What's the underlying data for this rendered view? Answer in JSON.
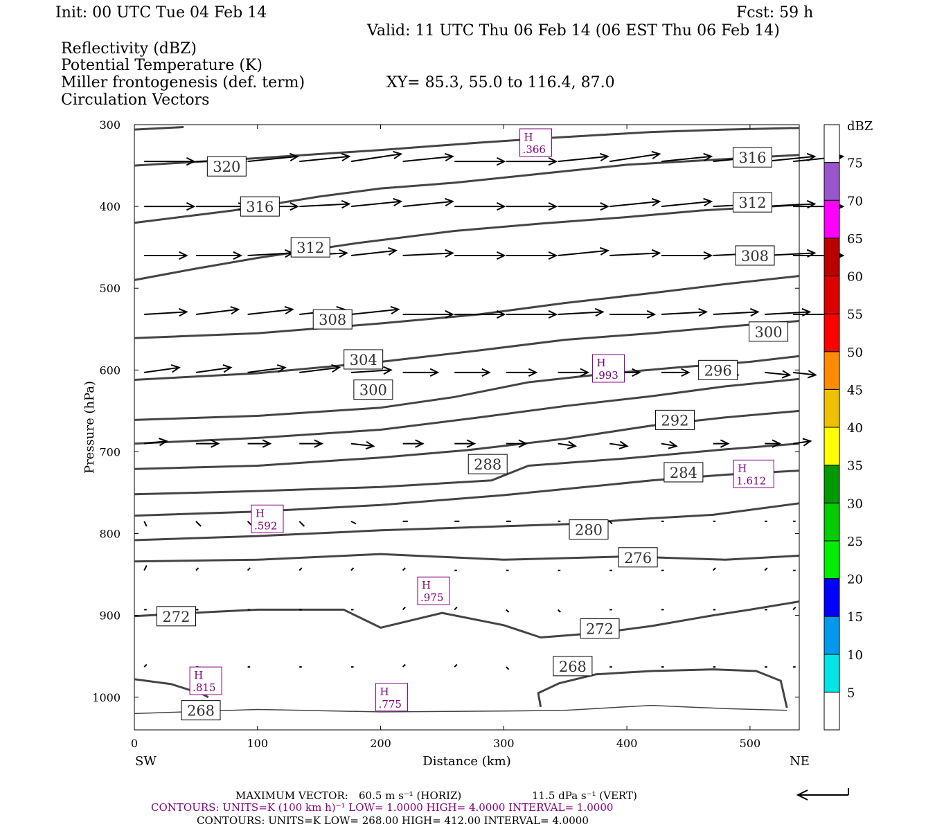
{
  "header": {
    "init": "Init: 00 UTC Tue 04 Feb 14",
    "fcst": "Fcst:   59 h",
    "valid": "Valid: 11 UTC Thu 06 Feb 14 (06 EST Thu 06 Feb 14)"
  },
  "fields": [
    {
      "text": "Reflectivity (dBZ)",
      "color": "#000000"
    },
    {
      "text": "Potential Temperature (K)",
      "color": "#666666"
    },
    {
      "text": "Miller frontogenesis (def. term)",
      "color": "#800080"
    },
    {
      "text": "Circulation Vectors",
      "color": "#000000"
    }
  ],
  "xy_label": "XY=  85.3, 55.0 to 116.4, 87.0",
  "axes": {
    "ylabel": "Pressure (hPa)",
    "xlabel": "Distance (km)",
    "x_left_label": "SW",
    "x_right_label": "NE",
    "yticks": [
      "300",
      "400",
      "500",
      "600",
      "700",
      "800",
      "900",
      "1000"
    ],
    "xticks": [
      "0",
      "100",
      "200",
      "300",
      "400",
      "500"
    ]
  },
  "colorbar": {
    "unit": "dBZ",
    "levels": [
      "5",
      "10",
      "15",
      "20",
      "25",
      "30",
      "35",
      "40",
      "45",
      "50",
      "55",
      "60",
      "65",
      "70",
      "75"
    ],
    "colors": [
      "#ffffff",
      "#00e5e5",
      "#0099ee",
      "#0000ff",
      "#00ee00",
      "#00cc00",
      "#009900",
      "#ffff00",
      "#eec000",
      "#ff8c00",
      "#ff0000",
      "#dd0000",
      "#bb0000",
      "#ff00ff",
      "#9955cc",
      "#ffffff"
    ]
  },
  "footer": {
    "max_vector_label": "MAXIMUM VECTOR:",
    "horiz": "60.5 m s⁻¹ (HORIZ)",
    "vert": "11.5 dPa s⁻¹ (VERT)",
    "contours_purple": "CONTOURS:  UNITS=K (100 km h)⁻¹  LOW=   1.0000      HIGH=   4.0000      INTERVAL=    1.0000",
    "contours_black": "CONTOURS:  UNITS=K  LOW=   268.00        HIGH=   412.00        INTERVAL=     4.0000"
  },
  "chart_data": {
    "type": "cross-section",
    "xlim": [
      0,
      540
    ],
    "ylim_hPa": [
      300,
      1040
    ],
    "theta_contours": [
      {
        "label": "268",
        "points": [
          [
            0,
            1020
          ],
          [
            100,
            1015
          ],
          [
            200,
            1018
          ],
          [
            300,
            1017
          ],
          [
            350,
            1016
          ],
          [
            420,
            1010
          ],
          [
            480,
            1014
          ],
          [
            530,
            1016
          ]
        ]
      },
      {
        "label": "268",
        "points": [
          [
            0,
            978
          ],
          [
            30,
            984
          ],
          [
            55,
            996
          ],
          [
            60,
            1000
          ]
        ]
      },
      {
        "label": "268",
        "points": [
          [
            330,
            1012
          ],
          [
            328,
            995
          ],
          [
            345,
            983
          ],
          [
            375,
            972
          ],
          [
            420,
            968
          ],
          [
            470,
            966
          ],
          [
            505,
            968
          ],
          [
            525,
            980
          ],
          [
            530,
            1013
          ]
        ]
      },
      {
        "label": "272",
        "points": [
          [
            0,
            901
          ],
          [
            60,
            896
          ],
          [
            100,
            893
          ],
          [
            170,
            893
          ],
          [
            200,
            915
          ],
          [
            250,
            897
          ],
          [
            300,
            912
          ],
          [
            330,
            927
          ],
          [
            380,
            921
          ],
          [
            420,
            913
          ],
          [
            470,
            900
          ],
          [
            500,
            893
          ],
          [
            540,
            883
          ]
        ]
      },
      {
        "label": "276",
        "points": [
          [
            0,
            834
          ],
          [
            100,
            832
          ],
          [
            200,
            825
          ],
          [
            300,
            832
          ],
          [
            400,
            828
          ],
          [
            480,
            832
          ],
          [
            540,
            827
          ]
        ]
      },
      {
        "label": "280",
        "points": [
          [
            0,
            808
          ],
          [
            100,
            803
          ],
          [
            200,
            796
          ],
          [
            300,
            791
          ],
          [
            360,
            788
          ],
          [
            400,
            783
          ],
          [
            470,
            777
          ],
          [
            540,
            763
          ]
        ]
      },
      {
        "label": "280",
        "points": [
          [
            0,
            778
          ],
          [
            100,
            773
          ],
          [
            200,
            765
          ],
          [
            300,
            753
          ],
          [
            360,
            744
          ],
          [
            420,
            735
          ],
          [
            480,
            728
          ],
          [
            540,
            723
          ]
        ]
      },
      {
        "label": "284",
        "points": [
          [
            0,
            752
          ],
          [
            100,
            748
          ],
          [
            200,
            743
          ],
          [
            290,
            735
          ],
          [
            320,
            717
          ],
          [
            400,
            708
          ],
          [
            480,
            697
          ],
          [
            540,
            690
          ]
        ]
      },
      {
        "label": "288",
        "points": [
          [
            0,
            721
          ],
          [
            100,
            717
          ],
          [
            200,
            707
          ],
          [
            270,
            698
          ],
          [
            350,
            684
          ],
          [
            420,
            668
          ],
          [
            480,
            658
          ],
          [
            540,
            650
          ]
        ]
      },
      {
        "label": "292",
        "points": [
          [
            0,
            690
          ],
          [
            100,
            683
          ],
          [
            200,
            673
          ],
          [
            280,
            658
          ],
          [
            350,
            644
          ],
          [
            420,
            632
          ],
          [
            480,
            620
          ],
          [
            540,
            611
          ]
        ]
      },
      {
        "label": "296",
        "points": [
          [
            0,
            661
          ],
          [
            100,
            656
          ],
          [
            200,
            646
          ],
          [
            260,
            633
          ],
          [
            320,
            615
          ],
          [
            380,
            605
          ],
          [
            440,
            597
          ],
          [
            500,
            590
          ],
          [
            540,
            583
          ]
        ]
      },
      {
        "label": "300",
        "points": [
          [
            0,
            612
          ],
          [
            100,
            604
          ],
          [
            200,
            590
          ],
          [
            280,
            576
          ],
          [
            350,
            563
          ],
          [
            420,
            555
          ],
          [
            480,
            547
          ],
          [
            540,
            540
          ]
        ]
      },
      {
        "label": "304",
        "points": [
          [
            0,
            561
          ],
          [
            100,
            555
          ],
          [
            200,
            543
          ],
          [
            280,
            532
          ],
          [
            350,
            518
          ],
          [
            420,
            506
          ],
          [
            480,
            495
          ],
          [
            540,
            485
          ]
        ]
      },
      {
        "label": "308",
        "points": [
          [
            0,
            490
          ],
          [
            50,
            476
          ],
          [
            100,
            463
          ],
          [
            180,
            445
          ],
          [
            260,
            430
          ],
          [
            330,
            421
          ],
          [
            400,
            413
          ],
          [
            460,
            405
          ],
          [
            540,
            398
          ]
        ]
      },
      {
        "label": "312",
        "points": [
          [
            0,
            420
          ],
          [
            80,
            405
          ],
          [
            150,
            388
          ],
          [
            200,
            378
          ],
          [
            260,
            371
          ],
          [
            330,
            360
          ],
          [
            400,
            349
          ],
          [
            470,
            343
          ],
          [
            540,
            337
          ]
        ]
      },
      {
        "label": "316",
        "points": [
          [
            0,
            350
          ],
          [
            100,
            341
          ],
          [
            200,
            331
          ],
          [
            280,
            322
          ],
          [
            340,
            316
          ],
          [
            420,
            309
          ],
          [
            480,
            306
          ],
          [
            540,
            304
          ]
        ]
      },
      {
        "label": "320",
        "points": [
          [
            0,
            306
          ],
          [
            40,
            303
          ]
        ]
      }
    ],
    "theta_labels": [
      {
        "text": "320",
        "x": 75,
        "p": 351
      },
      {
        "text": "316",
        "x": 502,
        "p": 340
      },
      {
        "text": "316",
        "x": 102,
        "p": 400
      },
      {
        "text": "312",
        "x": 502,
        "p": 395
      },
      {
        "text": "312",
        "x": 143,
        "p": 450
      },
      {
        "text": "308",
        "x": 504,
        "p": 460
      },
      {
        "text": "308",
        "x": 161,
        "p": 538
      },
      {
        "text": "300",
        "x": 515,
        "p": 553
      },
      {
        "text": "304",
        "x": 186,
        "p": 587
      },
      {
        "text": "296",
        "x": 474,
        "p": 600
      },
      {
        "text": "300",
        "x": 194,
        "p": 624
      },
      {
        "text": "292",
        "x": 439,
        "p": 661
      },
      {
        "text": "288",
        "x": 287,
        "p": 715
      },
      {
        "text": "284",
        "x": 446,
        "p": 725
      },
      {
        "text": "280",
        "x": 369,
        "p": 795
      },
      {
        "text": "276",
        "x": 409,
        "p": 829
      },
      {
        "text": "272",
        "x": 34,
        "p": 901
      },
      {
        "text": "272",
        "x": 378,
        "p": 916
      },
      {
        "text": "268",
        "x": 356,
        "p": 962
      },
      {
        "text": "268",
        "x": 54,
        "p": 1016
      }
    ],
    "frontogenesis_maxima": [
      {
        "label": "H",
        "value": ".366",
        "x": 326,
        "p": 322
      },
      {
        "label": "H",
        "value": ".993",
        "x": 385,
        "p": 598
      },
      {
        "label": "H",
        "value": "1.612",
        "x": 503,
        "p": 727
      },
      {
        "label": "H",
        "value": ".592",
        "x": 108,
        "p": 782
      },
      {
        "label": "H",
        "value": ".975",
        "x": 243,
        "p": 870
      },
      {
        "label": "H",
        "value": ".815",
        "x": 58,
        "p": 980
      },
      {
        "label": "H",
        "value": ".775",
        "x": 209,
        "p": 1000
      }
    ],
    "vector_rows": [
      {
        "p": 345,
        "u": [
          1.0,
          1.0,
          1.0,
          1.0,
          1.0,
          1.0,
          1.0,
          1.0,
          1.0,
          1.0,
          1.0,
          1.0,
          1.0,
          1.0
        ],
        "w": [
          0,
          0,
          0.1,
          0.1,
          0.15,
          0.1,
          0,
          0,
          0.1,
          0.15,
          0.1,
          0.1,
          0.1,
          0.1
        ]
      },
      {
        "p": 400,
        "u": [
          1.0,
          1.0,
          1.0,
          1.0,
          1.0,
          1.0,
          1.0,
          1.0,
          1.0,
          1.0,
          1.0,
          1.0,
          1.0,
          1.0
        ],
        "w": [
          0,
          0,
          0,
          0.05,
          0.1,
          0.1,
          0,
          0,
          0,
          0.1,
          0.1,
          0.05,
          0.05,
          0
        ]
      },
      {
        "p": 460,
        "u": [
          0.85,
          0.9,
          0.9,
          0.95,
          0.9,
          1.0,
          1.0,
          1.0,
          1.0,
          1.0,
          1.0,
          1.0,
          1.0,
          1.0
        ],
        "w": [
          0,
          0,
          0.05,
          0.05,
          0.1,
          0.05,
          0,
          0,
          0.1,
          0.05,
          0,
          0.05,
          0.05,
          0
        ]
      },
      {
        "p": 532,
        "u": [
          0.85,
          0.85,
          0.9,
          0.9,
          0.95,
          1.0,
          1.0,
          1.0,
          0.9,
          0.9,
          0.9,
          0.9,
          0.9,
          0.9
        ],
        "w": [
          0.05,
          0.1,
          0.1,
          0.1,
          0.1,
          0,
          0,
          0,
          0.05,
          0,
          0.05,
          0.05,
          0.05,
          0
        ]
      },
      {
        "p": 603,
        "u": [
          0.7,
          0.7,
          0.75,
          0.8,
          0.8,
          0.7,
          0.7,
          0.6,
          0.6,
          0.6,
          0.55,
          0.5,
          0.5,
          0.45
        ],
        "w": [
          0.1,
          0.1,
          0.1,
          0.1,
          0.05,
          0,
          0,
          0,
          0,
          0,
          0,
          -0.05,
          -0.05,
          -0.05
        ]
      },
      {
        "p": 690,
        "u": [
          0.45,
          0.45,
          0.45,
          0.45,
          0.45,
          0.4,
          0.4,
          0.4,
          0.35,
          0.35,
          0.3,
          0.3,
          0.3,
          0.35
        ],
        "w": [
          0.05,
          0,
          0,
          0,
          -0.05,
          0,
          0,
          0,
          -0.05,
          -0.05,
          -0.05,
          0,
          0,
          0.05
        ]
      },
      {
        "p": 785,
        "u": [
          0.05,
          0.1,
          0.1,
          0.1,
          0.1,
          0.1,
          0.1,
          0.1,
          0.05,
          0.05,
          0.05,
          0.05,
          0.05,
          0.05
        ],
        "w": [
          -0.1,
          -0.1,
          -0.1,
          -0.1,
          -0.05,
          0,
          0,
          0,
          0,
          -0.05,
          0,
          0,
          0,
          0
        ]
      },
      {
        "p": 845,
        "u": [
          0.05,
          0.05,
          0.05,
          0.05,
          0.05,
          0.05,
          0.05,
          0.05,
          0.05,
          0.05,
          0.05,
          0.05,
          0.05,
          0.05
        ],
        "w": [
          0.1,
          0.05,
          0.05,
          0.05,
          0.05,
          0.05,
          0,
          0,
          0,
          0,
          0,
          0.05,
          0.05,
          0
        ]
      },
      {
        "p": 893,
        "u": [
          0.05,
          0.05,
          0.05,
          0.05,
          0.05,
          0.05,
          0.05,
          0.05,
          0.05,
          0.05,
          0.05,
          0.05,
          0.05,
          0.05
        ],
        "w": [
          0,
          0,
          0,
          0,
          0,
          0.05,
          0.05,
          -0.05,
          -0.05,
          0,
          0,
          0,
          0,
          0.05
        ]
      },
      {
        "p": 963,
        "u": [
          0.05,
          0.05,
          0.05,
          0.05,
          0.05,
          0.05,
          0.05,
          0.05,
          0.05,
          0.05,
          0.05,
          0.05,
          0.05,
          0.05
        ],
        "w": [
          0.05,
          0,
          0,
          0,
          0,
          0.05,
          0.05,
          -0.05,
          -0.05,
          0,
          0,
          0,
          0,
          0
        ]
      }
    ],
    "vector_columns_km": [
      8,
      50,
      92,
      134,
      176,
      218,
      260,
      302,
      344,
      386,
      428,
      470,
      512,
      535
    ],
    "max_vector_arrow": "left"
  }
}
